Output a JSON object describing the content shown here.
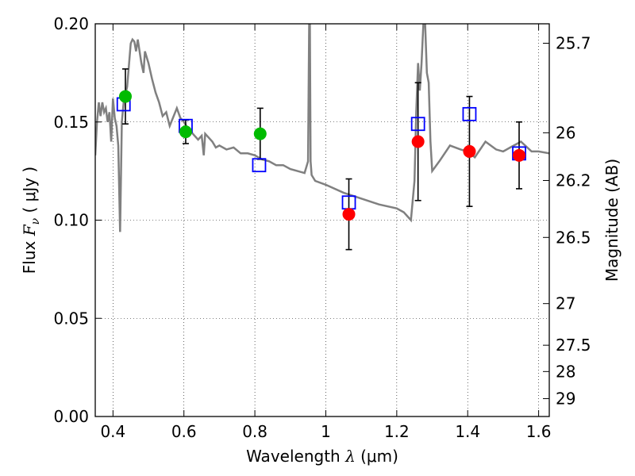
{
  "chart_data": {
    "type": "scatter",
    "xlabel": {
      "prefix": "Wavelength  ",
      "symbol": "λ",
      "unit": " (μm)"
    },
    "ylabel": {
      "prefix": "Flux  ",
      "symbol": "F",
      "sub": "ν",
      "unit": "  ( μJy )"
    },
    "ylabel_right": "Magnitude (AB)",
    "xlim": [
      0.35,
      1.63
    ],
    "ylim": [
      0.0,
      0.2
    ],
    "xticks": [
      {
        "v": 0.4,
        "label": "0.4"
      },
      {
        "v": 0.6,
        "label": "0.6"
      },
      {
        "v": 0.8,
        "label": "0.8"
      },
      {
        "v": 1.0,
        "label": "1"
      },
      {
        "v": 1.2,
        "label": "1.2"
      },
      {
        "v": 1.4,
        "label": "1.4"
      },
      {
        "v": 1.6,
        "label": "1.6"
      }
    ],
    "yticks": [
      {
        "v": 0.0,
        "label": "0.00"
      },
      {
        "v": 0.05,
        "label": "0.05"
      },
      {
        "v": 0.1,
        "label": "0.10"
      },
      {
        "v": 0.15,
        "label": "0.15"
      },
      {
        "v": 0.2,
        "label": "0.20"
      }
    ],
    "right_ticks": [
      {
        "flux": 0.1901,
        "label": "25.7"
      },
      {
        "flux": 0.1445,
        "label": "26"
      },
      {
        "flux": 0.1202,
        "label": "26.2"
      },
      {
        "flux": 0.0912,
        "label": "26.5"
      },
      {
        "flux": 0.0575,
        "label": "27"
      },
      {
        "flux": 0.0363,
        "label": "27.5"
      },
      {
        "flux": 0.0229,
        "label": "28"
      },
      {
        "flux": 0.0091,
        "label": "29"
      }
    ],
    "grid": true,
    "colors": {
      "model": "#808080",
      "optical": "#00bb00",
      "nir": "#ff0000",
      "model_band": "#0000ff",
      "errorbar": "#000000"
    },
    "model_spectrum": {
      "x": [
        0.35,
        0.355,
        0.36,
        0.365,
        0.37,
        0.375,
        0.38,
        0.385,
        0.39,
        0.395,
        0.4,
        0.405,
        0.41,
        0.415,
        0.42,
        0.425,
        0.43,
        0.44,
        0.45,
        0.455,
        0.46,
        0.465,
        0.47,
        0.48,
        0.486,
        0.49,
        0.5,
        0.51,
        0.52,
        0.53,
        0.54,
        0.55,
        0.56,
        0.58,
        0.59,
        0.6,
        0.61,
        0.62,
        0.63,
        0.64,
        0.65,
        0.656,
        0.66,
        0.67,
        0.68,
        0.69,
        0.7,
        0.72,
        0.74,
        0.76,
        0.78,
        0.8,
        0.82,
        0.84,
        0.86,
        0.88,
        0.9,
        0.92,
        0.94,
        0.95,
        0.953,
        0.955,
        0.957,
        0.96,
        0.97,
        1.0,
        1.05,
        1.1,
        1.15,
        1.2,
        1.22,
        1.24,
        1.25,
        1.255,
        1.26,
        1.265,
        1.27,
        1.275,
        1.28,
        1.285,
        1.29,
        1.295,
        1.3,
        1.32,
        1.35,
        1.38,
        1.4,
        1.42,
        1.45,
        1.48,
        1.5,
        1.52,
        1.55,
        1.58,
        1.6,
        1.63
      ],
      "y": [
        0.133,
        0.15,
        0.16,
        0.153,
        0.16,
        0.155,
        0.157,
        0.15,
        0.155,
        0.14,
        0.162,
        0.152,
        0.148,
        0.138,
        0.094,
        0.15,
        0.16,
        0.168,
        0.19,
        0.192,
        0.191,
        0.186,
        0.192,
        0.18,
        0.175,
        0.186,
        0.18,
        0.172,
        0.165,
        0.16,
        0.153,
        0.155,
        0.148,
        0.157,
        0.152,
        0.15,
        0.147,
        0.145,
        0.143,
        0.141,
        0.143,
        0.133,
        0.144,
        0.142,
        0.14,
        0.137,
        0.138,
        0.136,
        0.137,
        0.134,
        0.134,
        0.133,
        0.131,
        0.13,
        0.128,
        0.128,
        0.126,
        0.125,
        0.124,
        0.13,
        0.2,
        0.2,
        0.13,
        0.123,
        0.12,
        0.118,
        0.114,
        0.111,
        0.108,
        0.106,
        0.104,
        0.1,
        0.12,
        0.155,
        0.18,
        0.166,
        0.18,
        0.2,
        0.2,
        0.175,
        0.17,
        0.14,
        0.125,
        0.13,
        0.138,
        0.136,
        0.135,
        0.132,
        0.14,
        0.136,
        0.135,
        0.137,
        0.14,
        0.135,
        0.135,
        0.134
      ]
    },
    "series": [
      {
        "name": "",
        "kind": "optical_observed",
        "x": [
          0.435,
          0.605,
          0.815
        ],
        "y": [
          0.163,
          0.145,
          0.144
        ],
        "yerr": [
          0.014,
          0.006,
          0.013
        ]
      },
      {
        "name": "",
        "kind": "nir_observed",
        "x": [
          1.065,
          1.26,
          1.405,
          1.545
        ],
        "y": [
          0.103,
          0.14,
          0.135,
          0.133
        ],
        "yerr": [
          0.018,
          0.03,
          0.028,
          0.017
        ]
      },
      {
        "name": "",
        "kind": "model_bandpass",
        "x": [
          0.43,
          0.605,
          0.812,
          1.065,
          1.26,
          1.405,
          1.545
        ],
        "y": [
          0.159,
          0.148,
          0.128,
          0.109,
          0.149,
          0.154,
          0.134
        ]
      }
    ]
  }
}
